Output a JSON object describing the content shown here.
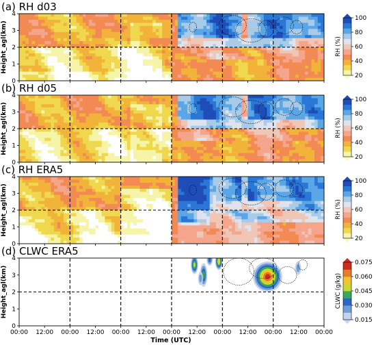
{
  "figure": {
    "x_axis_label": "Time (UTC)",
    "y_axis_label": "Height_agl(km)"
  },
  "chart_data": [
    {
      "type": "heatmap",
      "panel": "(a)",
      "title": "(a) RH d03",
      "ylabel": "Height_agl(km)",
      "yticks": [
        "0",
        "1",
        "2",
        "3",
        "4"
      ],
      "ylim": [
        0,
        4
      ],
      "xticks": [
        "00:00",
        "12:00",
        "00:00",
        "12:00",
        "00:00",
        "12:00",
        "00:00",
        "12:00",
        "00:00",
        "12:00",
        "00:00",
        "12:00",
        "00:00"
      ],
      "grid": "dashed vertical lines at each 00:00, dashed horizontal line at 2 km",
      "colorbar": {
        "label": "RH (%)",
        "ticks": [
          "20",
          "40",
          "60",
          "80",
          "100"
        ],
        "range": [
          20,
          100
        ]
      },
      "overlay": "dotted contours of cloud liquid water after fourth 00:00"
    },
    {
      "type": "heatmap",
      "panel": "(b)",
      "title": "(b) RH d05",
      "ylabel": "Height_agl(km)",
      "yticks": [
        "0",
        "1",
        "2",
        "3",
        "4"
      ],
      "ylim": [
        0,
        4
      ],
      "xticks": [
        "00:00",
        "12:00",
        "00:00",
        "12:00",
        "00:00",
        "12:00",
        "00:00",
        "12:00",
        "00:00",
        "12:00",
        "00:00",
        "12:00",
        "00:00"
      ],
      "colorbar": {
        "label": "RH (%)",
        "ticks": [
          "20",
          "40",
          "60",
          "80",
          "100"
        ],
        "range": [
          20,
          100
        ]
      }
    },
    {
      "type": "heatmap",
      "panel": "(c)",
      "title": "(c) RH ERA5",
      "ylabel": "Height_agl(km)",
      "yticks": [
        "0",
        "1",
        "2",
        "3",
        "4"
      ],
      "ylim": [
        0,
        4
      ],
      "xticks": [
        "00:00",
        "12:00",
        "00:00",
        "12:00",
        "00:00",
        "12:00",
        "00:00",
        "12:00",
        "00:00",
        "12:00",
        "00:00",
        "12:00",
        "00:00"
      ],
      "colorbar": {
        "label": "RH (%)",
        "ticks": [
          "20",
          "40",
          "60",
          "80",
          "100"
        ],
        "range": [
          20,
          100
        ]
      }
    },
    {
      "type": "heatmap",
      "panel": "(d)",
      "title": "(d) CLWC ERA5",
      "ylabel": "Height_agl(km)",
      "yticks": [
        "0",
        "1",
        "2",
        "3",
        "4"
      ],
      "ylim": [
        0,
        4
      ],
      "xticks": [
        "00:00",
        "12:00",
        "00:00",
        "12:00",
        "00:00",
        "12:00",
        "00:00",
        "12:00",
        "00:00",
        "12:00",
        "00:00",
        "12:00",
        "00:00"
      ],
      "xlabel": "Time (UTC)",
      "colorbar": {
        "label": "CLWC (g/kg)",
        "ticks": [
          "0.015",
          "0.030",
          "0.045",
          "0.060",
          "0.075"
        ],
        "range": [
          0.015,
          0.075
        ]
      }
    }
  ],
  "colors": {
    "rh_scale": [
      "#ffffff",
      "#f6f4a9",
      "#f0d84e",
      "#f1b339",
      "#f28a53",
      "#f5a58c",
      "#f0c7b7",
      "#dfe3ee",
      "#a8cbe8",
      "#5aa6e6",
      "#2a77d6",
      "#1e4db8"
    ],
    "clwc_scale": [
      "#ffffff",
      "#c5d4ea",
      "#6f9fdb",
      "#2c68c2",
      "#3aa858",
      "#c7d932",
      "#f1c530",
      "#e77d28",
      "#c92f1c"
    ]
  }
}
